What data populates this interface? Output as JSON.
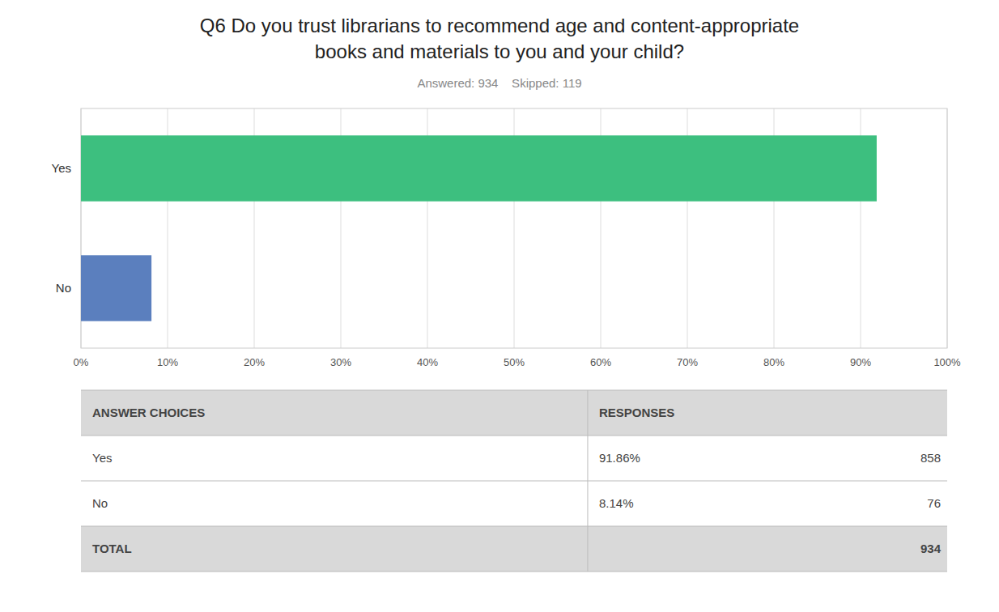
{
  "chart_data": {
    "type": "bar",
    "orientation": "horizontal",
    "title": [
      "Q6 Do you trust librarians to recommend age and content-appropriate",
      "books and materials to you and your child?"
    ],
    "subtitle": "Answered: 934    Skipped: 119",
    "categories": [
      "Yes",
      "No"
    ],
    "values": [
      91.86,
      8.14
    ],
    "colors": [
      "#3dbf7f",
      "#5b7fbe"
    ],
    "xlim": [
      0,
      100
    ],
    "xticks": [
      {
        "value": 0,
        "label": "0%"
      },
      {
        "value": 10,
        "label": "10%"
      },
      {
        "value": 20,
        "label": "20%"
      },
      {
        "value": 30,
        "label": "30%"
      },
      {
        "value": 40,
        "label": "40%"
      },
      {
        "value": 50,
        "label": "50%"
      },
      {
        "value": 60,
        "label": "60%"
      },
      {
        "value": 70,
        "label": "70%"
      },
      {
        "value": 80,
        "label": "80%"
      },
      {
        "value": 90,
        "label": "90%"
      },
      {
        "value": 100,
        "label": "100%"
      }
    ],
    "grid": true,
    "table": {
      "header": [
        "ANSWER CHOICES",
        "RESPONSES"
      ],
      "rows": [
        {
          "choice": "Yes",
          "pct": "91.86%",
          "count": 858
        },
        {
          "choice": "No",
          "pct": "8.14%",
          "count": 76
        }
      ],
      "total_label": "TOTAL",
      "total": 934
    }
  }
}
